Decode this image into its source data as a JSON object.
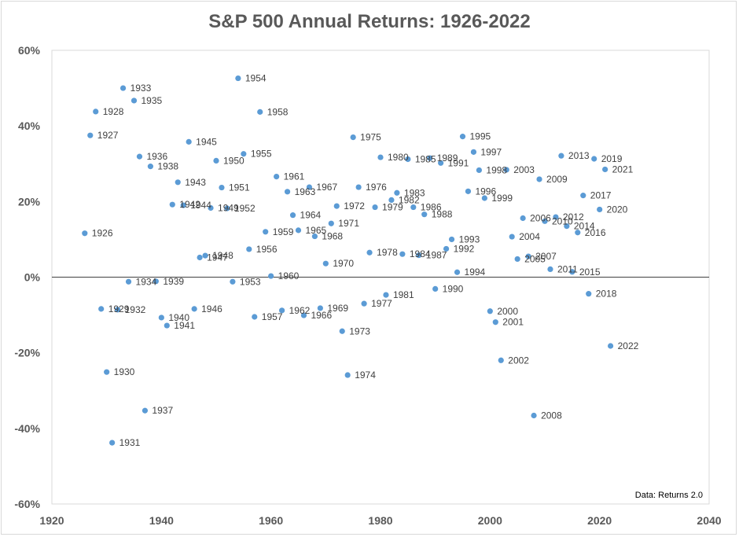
{
  "chart_data": {
    "type": "scatter",
    "title": "S&P 500 Annual Returns: 1926-2022",
    "source_note": "Data: Returns 2.0",
    "xlabel": "",
    "ylabel": "",
    "xlim": [
      1920,
      2040
    ],
    "ylim": [
      -60,
      60
    ],
    "x_ticks": [
      "1920",
      "1940",
      "1960",
      "1980",
      "2000",
      "2020",
      "2040"
    ],
    "y_ticks": [
      "60%",
      "40%",
      "20%",
      "0%",
      "-20%",
      "-40%",
      "-60%"
    ],
    "grid": false,
    "marker_color": "#5b9bd5",
    "points": [
      {
        "x": 1926,
        "y": 11.6,
        "label": "1926"
      },
      {
        "x": 1927,
        "y": 37.5,
        "label": "1927"
      },
      {
        "x": 1928,
        "y": 43.8,
        "label": "1928"
      },
      {
        "x": 1929,
        "y": -8.4,
        "label": "1929"
      },
      {
        "x": 1930,
        "y": -25.1,
        "label": "1930"
      },
      {
        "x": 1931,
        "y": -43.8,
        "label": "1931"
      },
      {
        "x": 1932,
        "y": -8.6,
        "label": "1932"
      },
      {
        "x": 1933,
        "y": 50.0,
        "label": "1933"
      },
      {
        "x": 1934,
        "y": -1.2,
        "label": "1934"
      },
      {
        "x": 1935,
        "y": 46.7,
        "label": "1935"
      },
      {
        "x": 1936,
        "y": 31.9,
        "label": "1936"
      },
      {
        "x": 1937,
        "y": -35.3,
        "label": "1937"
      },
      {
        "x": 1938,
        "y": 29.3,
        "label": "1938"
      },
      {
        "x": 1939,
        "y": -1.1,
        "label": "1939"
      },
      {
        "x": 1940,
        "y": -10.7,
        "label": "1940"
      },
      {
        "x": 1941,
        "y": -12.8,
        "label": "1941"
      },
      {
        "x": 1942,
        "y": 19.2,
        "label": "1942"
      },
      {
        "x": 1943,
        "y": 25.1,
        "label": "1943"
      },
      {
        "x": 1944,
        "y": 19.0,
        "label": "1944"
      },
      {
        "x": 1945,
        "y": 35.8,
        "label": "1945"
      },
      {
        "x": 1946,
        "y": -8.4,
        "label": "1946"
      },
      {
        "x": 1947,
        "y": 5.2,
        "label": "1947"
      },
      {
        "x": 1948,
        "y": 5.7,
        "label": "1948"
      },
      {
        "x": 1949,
        "y": 18.3,
        "label": "1949"
      },
      {
        "x": 1950,
        "y": 30.8,
        "label": "1950"
      },
      {
        "x": 1951,
        "y": 23.7,
        "label": "1951"
      },
      {
        "x": 1952,
        "y": 18.2,
        "label": "1952"
      },
      {
        "x": 1953,
        "y": -1.2,
        "label": "1953"
      },
      {
        "x": 1954,
        "y": 52.6,
        "label": "1954"
      },
      {
        "x": 1955,
        "y": 32.6,
        "label": "1955"
      },
      {
        "x": 1956,
        "y": 7.4,
        "label": "1956"
      },
      {
        "x": 1957,
        "y": -10.5,
        "label": "1957"
      },
      {
        "x": 1958,
        "y": 43.7,
        "label": "1958"
      },
      {
        "x": 1959,
        "y": 12.0,
        "label": "1959"
      },
      {
        "x": 1960,
        "y": 0.3,
        "label": "1960"
      },
      {
        "x": 1961,
        "y": 26.6,
        "label": "1961"
      },
      {
        "x": 1962,
        "y": -8.8,
        "label": "1962"
      },
      {
        "x": 1963,
        "y": 22.6,
        "label": "1963"
      },
      {
        "x": 1964,
        "y": 16.4,
        "label": "1964"
      },
      {
        "x": 1965,
        "y": 12.4,
        "label": "1965"
      },
      {
        "x": 1966,
        "y": -10.1,
        "label": "1966"
      },
      {
        "x": 1967,
        "y": 23.8,
        "label": "1967"
      },
      {
        "x": 1968,
        "y": 10.8,
        "label": "1968"
      },
      {
        "x": 1969,
        "y": -8.2,
        "label": "1969"
      },
      {
        "x": 1970,
        "y": 3.6,
        "label": "1970"
      },
      {
        "x": 1971,
        "y": 14.2,
        "label": "1971"
      },
      {
        "x": 1972,
        "y": 18.8,
        "label": "1972"
      },
      {
        "x": 1973,
        "y": -14.3,
        "label": "1973"
      },
      {
        "x": 1974,
        "y": -25.9,
        "label": "1974"
      },
      {
        "x": 1975,
        "y": 37.0,
        "label": "1975"
      },
      {
        "x": 1976,
        "y": 23.8,
        "label": "1976"
      },
      {
        "x": 1977,
        "y": -7.0,
        "label": "1977"
      },
      {
        "x": 1978,
        "y": 6.5,
        "label": "1978"
      },
      {
        "x": 1979,
        "y": 18.5,
        "label": "1979"
      },
      {
        "x": 1980,
        "y": 31.7,
        "label": "1980"
      },
      {
        "x": 1981,
        "y": -4.7,
        "label": "1981"
      },
      {
        "x": 1982,
        "y": 20.4,
        "label": "1982"
      },
      {
        "x": 1983,
        "y": 22.3,
        "label": "1983"
      },
      {
        "x": 1984,
        "y": 6.1,
        "label": "1984"
      },
      {
        "x": 1985,
        "y": 31.2,
        "label": "1985"
      },
      {
        "x": 1986,
        "y": 18.5,
        "label": "1986"
      },
      {
        "x": 1987,
        "y": 5.8,
        "label": "1987"
      },
      {
        "x": 1988,
        "y": 16.6,
        "label": "1988"
      },
      {
        "x": 1989,
        "y": 31.5,
        "label": "1989"
      },
      {
        "x": 1990,
        "y": -3.1,
        "label": "1990"
      },
      {
        "x": 1991,
        "y": 30.2,
        "label": "1991"
      },
      {
        "x": 1992,
        "y": 7.5,
        "label": "1992"
      },
      {
        "x": 1993,
        "y": 10.0,
        "label": "1993"
      },
      {
        "x": 1994,
        "y": 1.3,
        "label": "1994"
      },
      {
        "x": 1995,
        "y": 37.2,
        "label": "1995"
      },
      {
        "x": 1996,
        "y": 22.7,
        "label": "1996"
      },
      {
        "x": 1997,
        "y": 33.1,
        "label": "1997"
      },
      {
        "x": 1998,
        "y": 28.3,
        "label": "1998"
      },
      {
        "x": 1999,
        "y": 20.9,
        "label": "1999"
      },
      {
        "x": 2000,
        "y": -9.0,
        "label": "2000"
      },
      {
        "x": 2001,
        "y": -11.9,
        "label": "2001"
      },
      {
        "x": 2002,
        "y": -22.0,
        "label": "2002"
      },
      {
        "x": 2003,
        "y": 28.4,
        "label": "2003"
      },
      {
        "x": 2004,
        "y": 10.7,
        "label": "2004"
      },
      {
        "x": 2005,
        "y": 4.8,
        "label": "2005"
      },
      {
        "x": 2006,
        "y": 15.6,
        "label": "2006"
      },
      {
        "x": 2007,
        "y": 5.5,
        "label": "2007"
      },
      {
        "x": 2008,
        "y": -36.6,
        "label": "2008"
      },
      {
        "x": 2009,
        "y": 25.9,
        "label": "2009"
      },
      {
        "x": 2010,
        "y": 14.8,
        "label": "2010"
      },
      {
        "x": 2011,
        "y": 2.1,
        "label": "2011"
      },
      {
        "x": 2012,
        "y": 15.9,
        "label": "2012"
      },
      {
        "x": 2013,
        "y": 32.1,
        "label": "2013"
      },
      {
        "x": 2014,
        "y": 13.5,
        "label": "2014"
      },
      {
        "x": 2015,
        "y": 1.4,
        "label": "2015"
      },
      {
        "x": 2016,
        "y": 11.8,
        "label": "2016"
      },
      {
        "x": 2017,
        "y": 21.6,
        "label": "2017"
      },
      {
        "x": 2018,
        "y": -4.4,
        "label": "2018"
      },
      {
        "x": 2019,
        "y": 31.3,
        "label": "2019"
      },
      {
        "x": 2020,
        "y": 17.9,
        "label": "2020"
      },
      {
        "x": 2021,
        "y": 28.5,
        "label": "2021"
      },
      {
        "x": 2022,
        "y": -18.2,
        "label": "2022"
      }
    ]
  }
}
